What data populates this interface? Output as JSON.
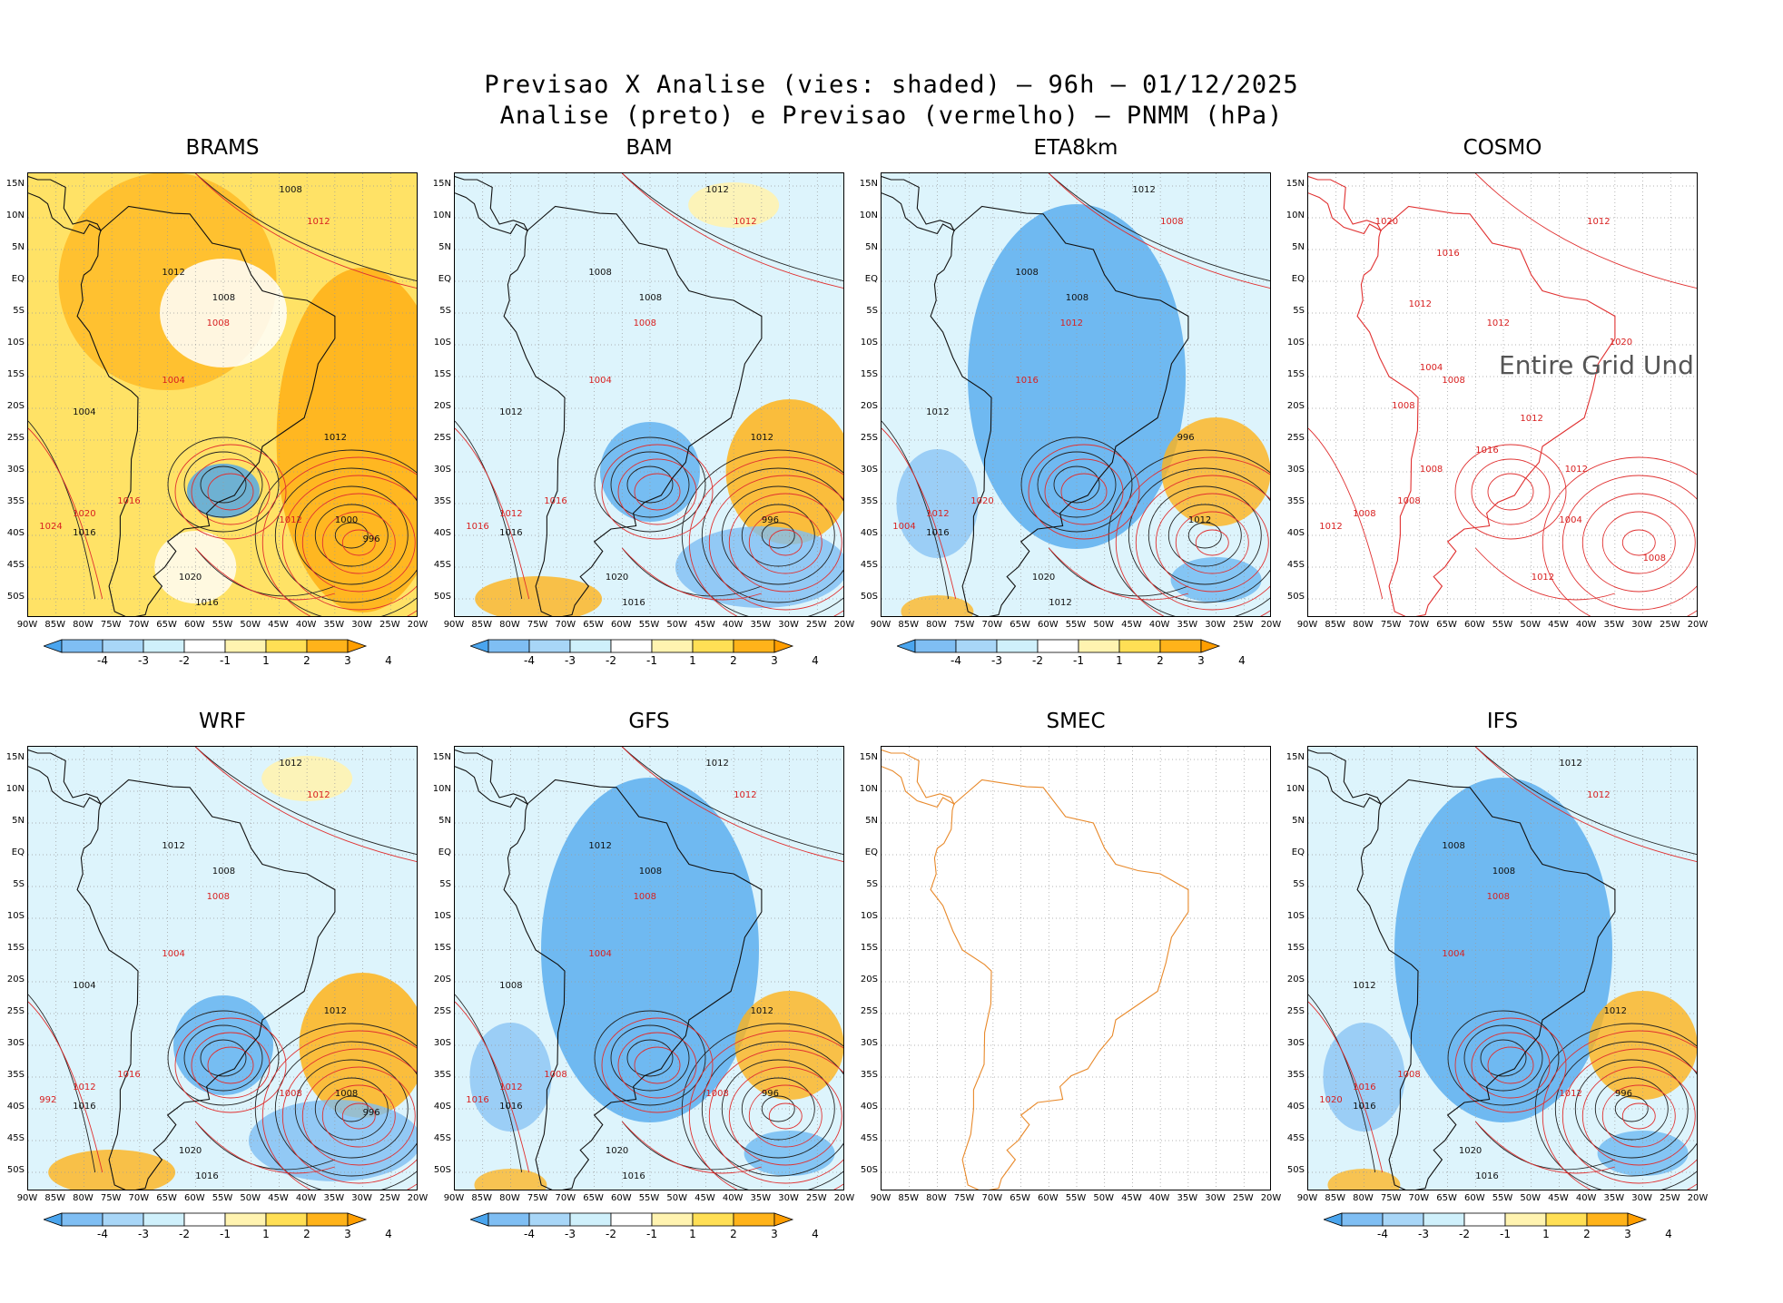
{
  "header": {
    "title_line1": "Previsao X Analise (vies: shaded) – 96h – 01/12/2025",
    "title_line2": "Analise (preto) e Previsao (vermelho) – PNMM (hPa)"
  },
  "axes": {
    "lat_labels": [
      "15N",
      "10N",
      "5N",
      "EQ",
      "5S",
      "10S",
      "15S",
      "20S",
      "25S",
      "30S",
      "35S",
      "40S",
      "45S",
      "50S"
    ],
    "lon_labels": [
      "90W",
      "85W",
      "80W",
      "75W",
      "70W",
      "65W",
      "60W",
      "55W",
      "50W",
      "45W",
      "40W",
      "35W",
      "30W",
      "25W",
      "20W"
    ]
  },
  "colorbar": {
    "labels": [
      "-4",
      "-3",
      "-2",
      "-1",
      "1",
      "2",
      "3",
      "4"
    ],
    "colors": [
      "#4aa5ee",
      "#7fbef3",
      "#a8d6f7",
      "#cff0fb",
      "#ffffff",
      "#fff3b0",
      "#ffdf55",
      "#ffb31a",
      "#ff9e00"
    ]
  },
  "panels": [
    {
      "id": "brams",
      "title": "BRAMS",
      "bias": "warm",
      "has_colorbar": true,
      "analysis_labels": [
        "1008",
        "1012",
        "1008",
        "1004",
        "1016",
        "1020",
        "1016",
        "1012",
        "1000",
        "996"
      ],
      "forecast_labels": [
        "1012",
        "1008",
        "1004",
        "1016",
        "1020",
        "1024",
        "1012"
      ]
    },
    {
      "id": "bam",
      "title": "BAM",
      "bias": "mixed",
      "has_colorbar": true,
      "analysis_labels": [
        "1012",
        "1008",
        "1008",
        "1012",
        "1016",
        "1020",
        "1016",
        "1012",
        "996"
      ],
      "forecast_labels": [
        "1012",
        "1008",
        "1004",
        "1016",
        "1012",
        "1016"
      ]
    },
    {
      "id": "eta8km",
      "title": "ETA8km",
      "bias": "cold",
      "has_colorbar": true,
      "analysis_labels": [
        "1012",
        "1008",
        "1008",
        "1012",
        "1016",
        "1020",
        "1012",
        "996",
        "1012"
      ],
      "forecast_labels": [
        "1008",
        "1012",
        "1016",
        "1020",
        "1012",
        "1004"
      ]
    },
    {
      "id": "cosmo",
      "title": "COSMO",
      "bias": "none",
      "has_colorbar": false,
      "nodata_text": "Entire Grid Und",
      "analysis_labels": [],
      "forecast_labels": [
        "1012",
        "1012",
        "1008",
        "1008",
        "1008",
        "1012",
        "1004",
        "1008",
        "1004",
        "1016",
        "1012",
        "1020",
        "1012",
        "1016",
        "1020",
        "1008",
        "1012",
        "1008",
        "1012"
      ]
    },
    {
      "id": "wrf",
      "title": "WRF",
      "bias": "mixed",
      "has_colorbar": true,
      "analysis_labels": [
        "1012",
        "1012",
        "1008",
        "1004",
        "1016",
        "1020",
        "1016",
        "1012",
        "1008",
        "996"
      ],
      "forecast_labels": [
        "1012",
        "1008",
        "1004",
        "1016",
        "1012",
        "992",
        "1008"
      ]
    },
    {
      "id": "gfs",
      "title": "GFS",
      "bias": "cold",
      "has_colorbar": true,
      "analysis_labels": [
        "1012",
        "1012",
        "1008",
        "1008",
        "1016",
        "1020",
        "1016",
        "1012",
        "996"
      ],
      "forecast_labels": [
        "1012",
        "1008",
        "1004",
        "1008",
        "1012",
        "1016",
        "1008"
      ]
    },
    {
      "id": "smec",
      "title": "SMEC",
      "bias": "none",
      "has_colorbar": false,
      "analysis_labels": [],
      "forecast_labels": []
    },
    {
      "id": "ifs",
      "title": "IFS",
      "bias": "cold",
      "has_colorbar": true,
      "analysis_labels": [
        "1012",
        "1008",
        "1008",
        "1012",
        "1016",
        "1020",
        "1016",
        "1012",
        "996"
      ],
      "forecast_labels": [
        "1012",
        "1008",
        "1004",
        "1008",
        "1016",
        "1020",
        "1012"
      ]
    }
  ]
}
